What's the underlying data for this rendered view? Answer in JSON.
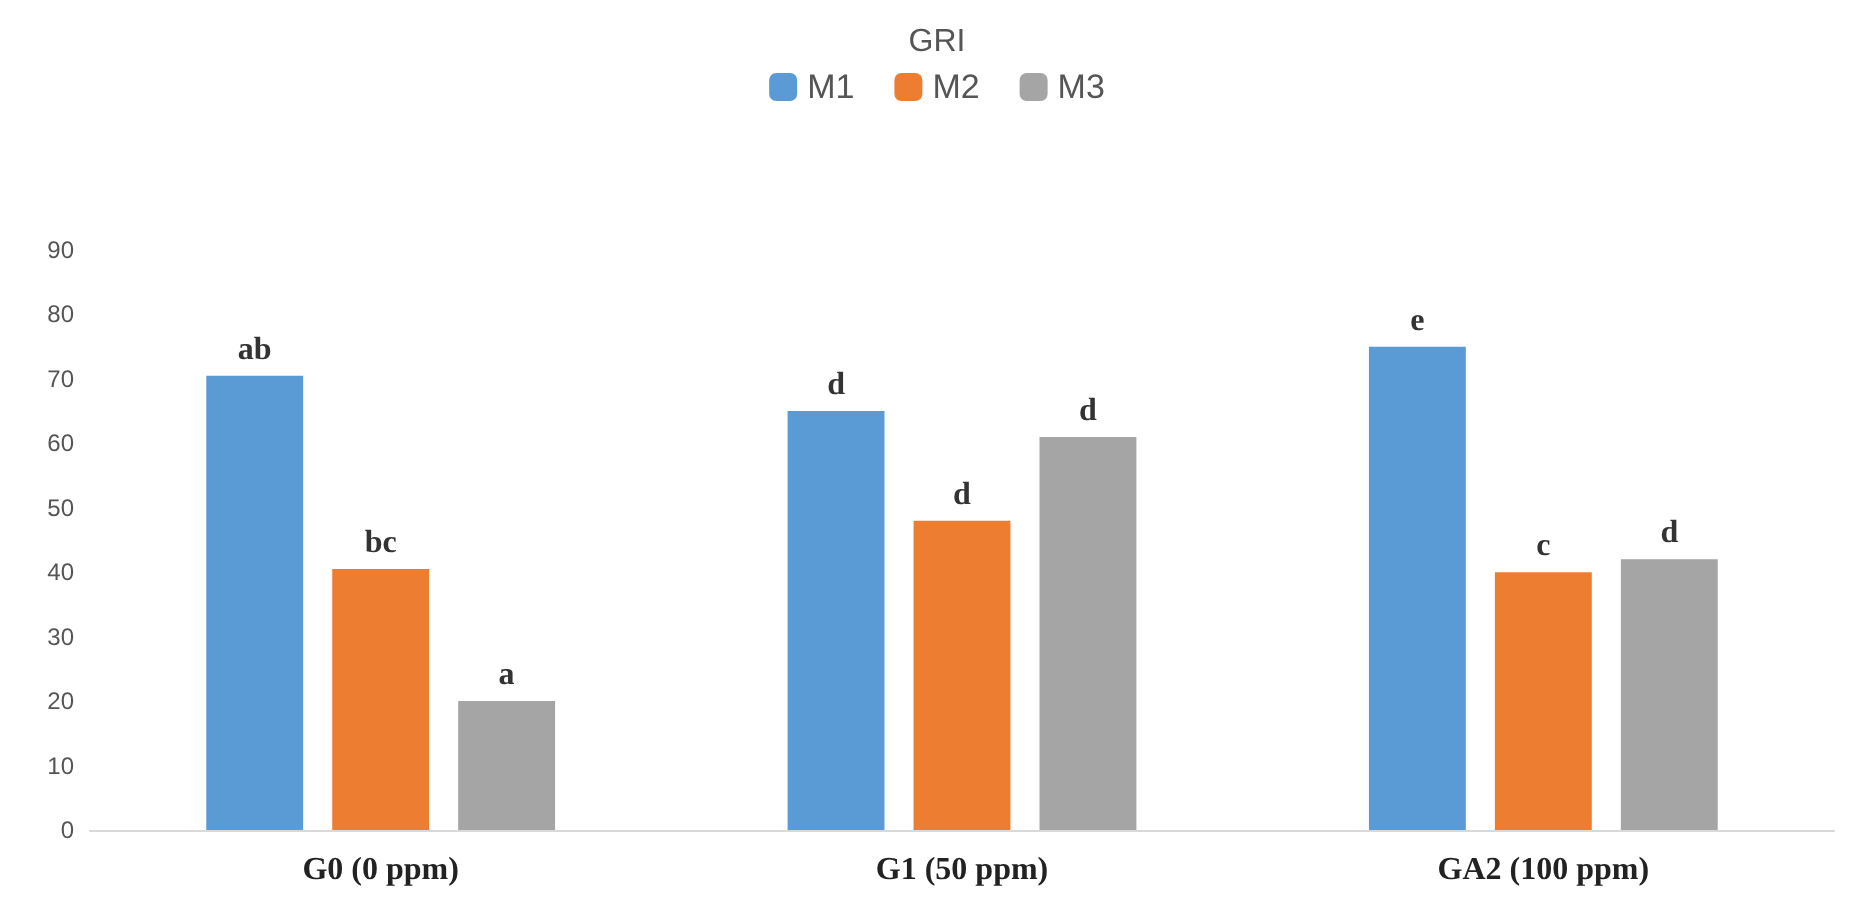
{
  "chart_data": {
    "type": "bar",
    "title": "GRI",
    "categories": [
      "G0 (0 ppm)",
      "G1 (50 ppm)",
      "GA2 (100 ppm)"
    ],
    "series": [
      {
        "name": "M1",
        "color": "#5b9bd5",
        "values": [
          70.5,
          65,
          75
        ],
        "value_labels": [
          "ab",
          "d",
          "e"
        ]
      },
      {
        "name": "M2",
        "color": "#ed7d31",
        "values": [
          40.5,
          48,
          40
        ],
        "value_labels": [
          "bc",
          "d",
          "c"
        ]
      },
      {
        "name": "M3",
        "color": "#a5a5a5",
        "values": [
          20,
          61,
          42
        ],
        "value_labels": [
          "a",
          "d",
          "d"
        ]
      }
    ],
    "ylim": [
      0,
      90
    ],
    "yticks": [
      0,
      10,
      20,
      30,
      40,
      50,
      60,
      70,
      80,
      90
    ],
    "grid": false,
    "legend": "top"
  }
}
